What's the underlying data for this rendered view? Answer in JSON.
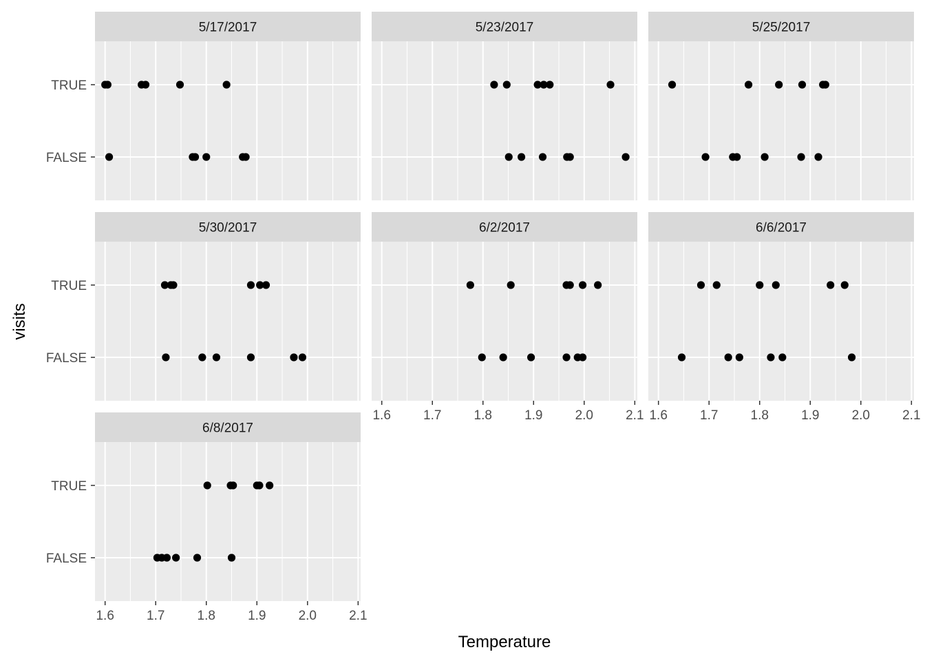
{
  "chart_data": {
    "type": "scatter",
    "xlabel": "Temperature",
    "ylabel": "visits",
    "categories": [
      "FALSE",
      "TRUE"
    ],
    "xlim": [
      1.58,
      2.105
    ],
    "x_ticks": [
      1.6,
      1.7,
      1.8,
      1.9,
      2.0,
      2.1
    ],
    "x_tick_labels": [
      "1.6",
      "1.7",
      "1.8",
      "1.9",
      "2.0",
      "2.1"
    ],
    "grid": true,
    "facets": [
      {
        "title": "5/17/2017",
        "points": {
          "TRUE": [
            1.6,
            1.605,
            1.672,
            1.68,
            1.748,
            1.84
          ],
          "FALSE": [
            1.608,
            1.773,
            1.778,
            1.8,
            1.872,
            1.878
          ]
        }
      },
      {
        "title": "5/23/2017",
        "points": {
          "TRUE": [
            1.822,
            1.847,
            1.908,
            1.92,
            1.932,
            2.052
          ],
          "FALSE": [
            1.851,
            1.876,
            1.918,
            1.966,
            1.972,
            2.082
          ]
        }
      },
      {
        "title": "5/25/2017",
        "points": {
          "TRUE": [
            1.627,
            1.778,
            1.838,
            1.884,
            1.925,
            1.93
          ],
          "FALSE": [
            1.693,
            1.747,
            1.755,
            1.81,
            1.882,
            1.916
          ]
        }
      },
      {
        "title": "5/30/2017",
        "points": {
          "TRUE": [
            1.718,
            1.73,
            1.735,
            1.888,
            1.906,
            1.918
          ],
          "FALSE": [
            1.72,
            1.792,
            1.82,
            1.888,
            1.973,
            1.99
          ]
        }
      },
      {
        "title": "6/2/2017",
        "points": {
          "TRUE": [
            1.775,
            1.855,
            1.965,
            1.972,
            1.997,
            2.027
          ],
          "FALSE": [
            1.798,
            1.84,
            1.895,
            1.965,
            1.987,
            1.997
          ]
        }
      },
      {
        "title": "6/6/2017",
        "points": {
          "TRUE": [
            1.684,
            1.715,
            1.8,
            1.832,
            1.94,
            1.968
          ],
          "FALSE": [
            1.646,
            1.738,
            1.76,
            1.822,
            1.845,
            1.982
          ]
        }
      },
      {
        "title": "6/8/2017",
        "points": {
          "TRUE": [
            1.802,
            1.848,
            1.853,
            1.9,
            1.905,
            1.925
          ],
          "FALSE": [
            1.703,
            1.712,
            1.722,
            1.74,
            1.782,
            1.85
          ]
        }
      }
    ]
  }
}
